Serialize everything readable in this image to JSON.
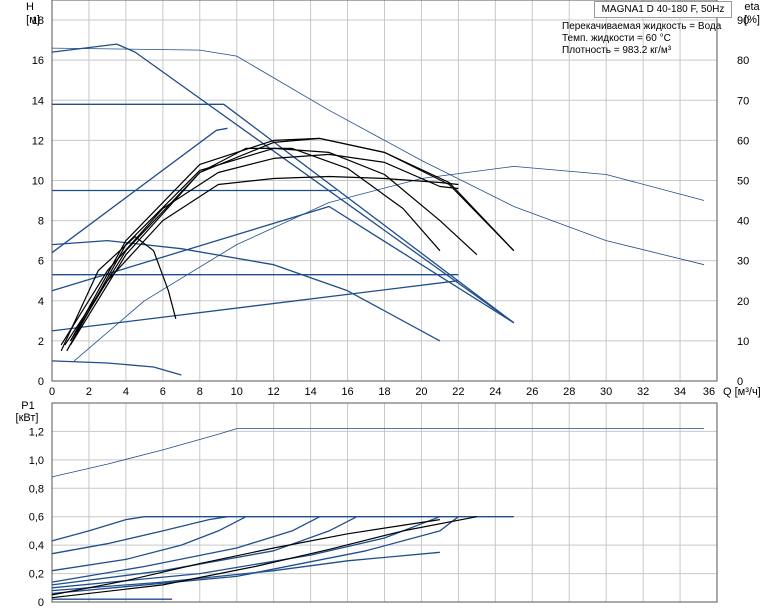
{
  "title": "MAGNA1 D 40-180 F, 50Hz",
  "conditions": [
    "Перекачиваемая жидкость = Вода",
    "Темп. жидкости = 60 °C",
    "Плотность = 983.2 кг/м³"
  ],
  "colors": {
    "blue": "#1f4e8c",
    "black": "#000000",
    "grid": "#c8c8c8",
    "axis": "#555555"
  },
  "chart_data": [
    {
      "type": "line",
      "name": "head-efficiency",
      "xlabel": "Q [м³/ч]",
      "ylabel_left": [
        "H",
        "[м]"
      ],
      "ylabel_right": [
        "eta",
        "[%]"
      ],
      "xlim": [
        0,
        36
      ],
      "ylim_left": [
        0,
        19
      ],
      "ylim_right": [
        0,
        95
      ],
      "xticks": [
        0,
        2,
        4,
        6,
        8,
        10,
        12,
        14,
        16,
        18,
        20,
        22,
        24,
        26,
        28,
        30,
        32,
        34,
        36
      ],
      "yticks_left": [
        0,
        2,
        4,
        6,
        8,
        10,
        12,
        14,
        16,
        18
      ],
      "yticks_right": [
        0,
        10,
        20,
        30,
        40,
        50,
        60,
        70,
        80,
        90
      ],
      "grid": true,
      "series": [
        {
          "color": "blue",
          "points": [
            [
              0,
              16.4
            ],
            [
              3.5,
              16.8
            ],
            [
              4.5,
              16.4
            ],
            [
              25,
              2.9
            ]
          ]
        },
        {
          "color": "blue",
          "points": [
            [
              0,
              13.8
            ],
            [
              9.3,
              13.8
            ],
            [
              25,
              2.9
            ]
          ]
        },
        {
          "color": "blue",
          "points": [
            [
              0,
              9.5
            ],
            [
              15.4,
              9.5
            ]
          ]
        },
        {
          "color": "blue",
          "points": [
            [
              0,
              5.3
            ],
            [
              22,
              5.3
            ]
          ]
        },
        {
          "color": "blue",
          "points": [
            [
              0,
              6.4
            ],
            [
              8.9,
              12.5
            ],
            [
              9.5,
              12.6
            ]
          ]
        },
        {
          "color": "blue",
          "points": [
            [
              0,
              4.5
            ],
            [
              15,
              8.7
            ],
            [
              25,
              2.9
            ]
          ]
        },
        {
          "color": "blue",
          "points": [
            [
              0,
              2.5
            ],
            [
              22,
              5
            ]
          ]
        },
        {
          "color": "blue",
          "points": [
            [
              0,
              6.8
            ],
            [
              3,
              7
            ],
            [
              7,
              6.6
            ],
            [
              12,
              5.8
            ],
            [
              16,
              4.5
            ],
            [
              21,
              2
            ]
          ]
        },
        {
          "color": "blue",
          "points": [
            [
              0,
              1
            ],
            [
              3,
              0.9
            ],
            [
              5.5,
              0.7
            ],
            [
              7,
              0.3
            ]
          ]
        },
        {
          "color": "blue-thin",
          "points": [
            [
              0,
              16.6
            ],
            [
              8,
              16.5
            ],
            [
              10,
              16.2
            ],
            [
              15,
              13.5
            ],
            [
              20,
              11
            ],
            [
              25,
              8.7
            ],
            [
              30,
              7
            ],
            [
              35.3,
              5.8
            ]
          ]
        },
        {
          "color": "blue-thin",
          "points": [
            [
              1.2,
              1
            ],
            [
              5,
              4
            ],
            [
              10,
              6.8
            ],
            [
              15,
              8.9
            ],
            [
              20,
              10.1
            ],
            [
              25,
              10.7
            ],
            [
              30,
              10.3
            ],
            [
              35.3,
              9
            ]
          ]
        },
        {
          "color": "black",
          "points": [
            [
              0.5,
              1.8
            ],
            [
              3,
              5.5
            ],
            [
              6,
              8.6
            ],
            [
              9,
              10.4
            ],
            [
              12,
              11.1
            ],
            [
              15,
              11.3
            ],
            [
              18,
              10.9
            ],
            [
              21,
              9.7
            ],
            [
              22,
              9.6
            ]
          ]
        },
        {
          "color": "black",
          "points": [
            [
              0.7,
              1.8
            ],
            [
              3,
              5
            ],
            [
              6,
              8
            ],
            [
              9,
              9.8
            ],
            [
              12,
              10.1
            ],
            [
              15,
              10.2
            ],
            [
              18,
              10.1
            ],
            [
              21,
              9.9
            ],
            [
              22,
              9.8
            ]
          ]
        },
        {
          "color": "black",
          "points": [
            [
              1,
              2
            ],
            [
              4,
              7
            ],
            [
              8,
              10.8
            ],
            [
              12,
              12
            ],
            [
              14.5,
              12.1
            ],
            [
              18,
              11.4
            ],
            [
              21.5,
              9.8
            ],
            [
              25,
              6.5
            ]
          ]
        },
        {
          "color": "black",
          "points": [
            [
              1,
              2
            ],
            [
              4,
              6.5
            ],
            [
              8,
              10.4
            ],
            [
              12,
              11.9
            ],
            [
              14.5,
              12.1
            ],
            [
              18,
              11.4
            ],
            [
              21.5,
              9.9
            ],
            [
              25,
              6.5
            ]
          ]
        },
        {
          "color": "black",
          "points": [
            [
              1,
              1.8
            ],
            [
              4,
              6.3
            ],
            [
              8,
              10.4
            ],
            [
              10.5,
              11.6
            ],
            [
              13,
              11.6
            ],
            [
              16,
              10.6
            ],
            [
              19,
              8.6
            ],
            [
              21,
              6.5
            ]
          ]
        },
        {
          "color": "black",
          "points": [
            [
              0.5,
              1.5
            ],
            [
              2.5,
              5.5
            ],
            [
              4.5,
              7.2
            ],
            [
              5.5,
              6.5
            ],
            [
              6.3,
              4.5
            ],
            [
              6.7,
              3.1
            ]
          ]
        },
        {
          "color": "black",
          "points": [
            [
              0.8,
              1.5
            ],
            [
              4,
              6.8
            ],
            [
              8,
              10.5
            ],
            [
              12,
              11.6
            ],
            [
              15,
              11.4
            ],
            [
              18,
              10.3
            ],
            [
              21,
              8
            ],
            [
              23,
              6.3
            ]
          ]
        }
      ]
    },
    {
      "type": "line",
      "name": "power",
      "ylabel_left": [
        "P1",
        "[кВт]"
      ],
      "xlim": [
        0,
        36
      ],
      "ylim": [
        0,
        1.4
      ],
      "yticks": [
        "0",
        "0,2",
        "0,4",
        "0,6",
        "0,8",
        "1,0",
        "1,2"
      ],
      "yvalues": [
        0,
        0.2,
        0.4,
        0.6,
        0.8,
        1.0,
        1.2
      ],
      "grid": true,
      "series": [
        {
          "color": "blue-thin",
          "points": [
            [
              0,
              0.88
            ],
            [
              3,
              0.97
            ],
            [
              6,
              1.07
            ],
            [
              9,
              1.18
            ],
            [
              10,
              1.22
            ],
            [
              35.3,
              1.22
            ]
          ]
        },
        {
          "color": "blue",
          "points": [
            [
              0,
              0.43
            ],
            [
              2,
              0.5
            ],
            [
              4,
              0.58
            ],
            [
              5,
              0.6
            ],
            [
              25,
              0.6
            ]
          ]
        },
        {
          "color": "blue",
          "points": [
            [
              0,
              0.34
            ],
            [
              3,
              0.41
            ],
            [
              6,
              0.5
            ],
            [
              8.5,
              0.58
            ],
            [
              9.5,
              0.6
            ]
          ]
        },
        {
          "color": "blue",
          "points": [
            [
              0,
              0.22
            ],
            [
              4,
              0.3
            ],
            [
              7,
              0.4
            ],
            [
              9,
              0.5
            ],
            [
              10.5,
              0.6
            ]
          ]
        },
        {
          "color": "blue",
          "points": [
            [
              0,
              0.14
            ],
            [
              5,
              0.25
            ],
            [
              10,
              0.38
            ],
            [
              13,
              0.5
            ],
            [
              14.5,
              0.6
            ]
          ]
        },
        {
          "color": "blue",
          "points": [
            [
              0,
              0.12
            ],
            [
              6,
              0.22
            ],
            [
              12,
              0.36
            ],
            [
              15,
              0.5
            ],
            [
              16.5,
              0.6
            ]
          ]
        },
        {
          "color": "blue",
          "points": [
            [
              0,
              0.1
            ],
            [
              8,
              0.2
            ],
            [
              14,
              0.33
            ],
            [
              18,
              0.45
            ],
            [
              21,
              0.6
            ]
          ]
        },
        {
          "color": "blue",
          "points": [
            [
              0,
              0.06
            ],
            [
              10,
              0.18
            ],
            [
              17,
              0.36
            ],
            [
              21,
              0.5
            ],
            [
              22,
              0.6
            ]
          ]
        },
        {
          "color": "blue",
          "points": [
            [
              0,
              0.08
            ],
            [
              6,
              0.14
            ],
            [
              12,
              0.22
            ],
            [
              16,
              0.29
            ],
            [
              21,
              0.35
            ]
          ]
        },
        {
          "color": "blue",
          "points": [
            [
              0,
              0.02
            ],
            [
              6.5,
              0.02
            ]
          ]
        },
        {
          "color": "black",
          "points": [
            [
              0,
              0.05
            ],
            [
              4,
              0.15
            ],
            [
              8,
              0.27
            ],
            [
              12,
              0.38
            ],
            [
              16,
              0.48
            ],
            [
              21,
              0.58
            ]
          ]
        },
        {
          "color": "black",
          "points": [
            [
              0,
              0.03
            ],
            [
              6,
              0.12
            ],
            [
              11,
              0.25
            ],
            [
              15,
              0.37
            ],
            [
              19,
              0.5
            ],
            [
              23,
              0.6
            ]
          ]
        }
      ]
    }
  ]
}
